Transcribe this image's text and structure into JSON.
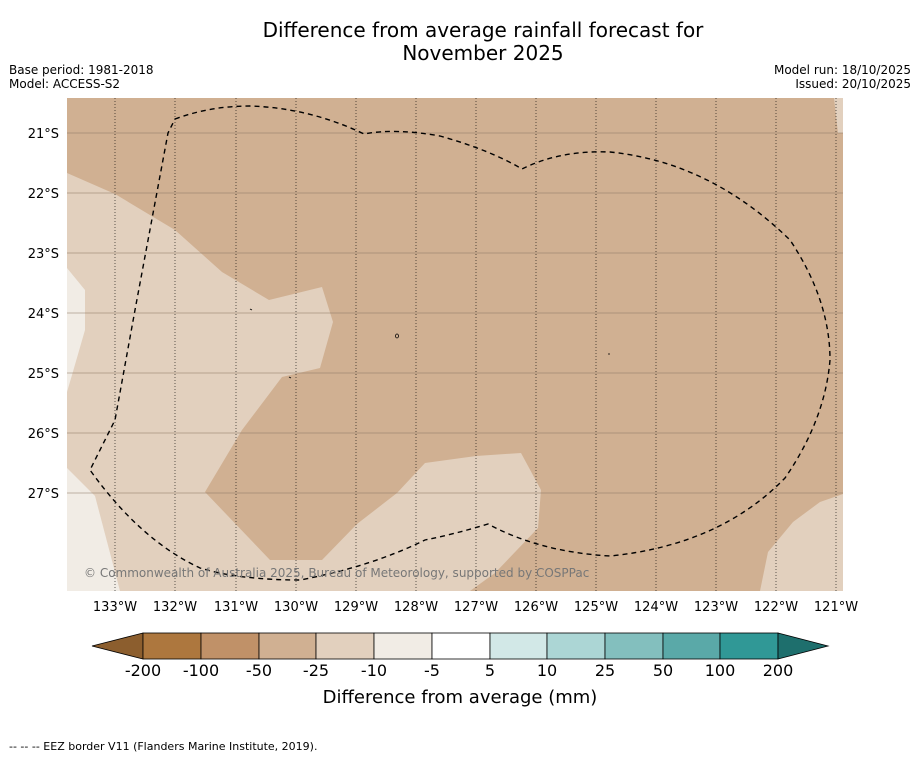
{
  "title": {
    "line1": "Difference from average rainfall forecast for",
    "line2": "November 2025"
  },
  "meta": {
    "base_period": "Base period: 1981-2018",
    "model": "Model: ACCESS-S2",
    "model_run": "Model run: 18/10/2025",
    "issued": "Issued: 20/10/2025"
  },
  "map": {
    "lat_labels": [
      "21°S",
      "22°S",
      "23°S",
      "24°S",
      "25°S",
      "26°S",
      "27°S"
    ],
    "lon_labels": [
      "133°W",
      "132°W",
      "131°W",
      "130°W",
      "129°W",
      "128°W",
      "127°W",
      "126°W",
      "125°W",
      "124°W",
      "123°W",
      "122°W",
      "121°W"
    ],
    "copyright": "© Commonwealth of Australia 2025, Bureau of Meteorology, supported by COSPPac",
    "colors": {
      "below_minus_200": "#8c5e2e",
      "minus_200_to_100": "#ad773e",
      "minus_100_to_50": "#c09168",
      "minus_50_to_25": "#d0b092",
      "minus_25_to_10": "#e2d0be",
      "minus_10_to_5": "#f1ece5",
      "near_zero": "#ffffff",
      "plus_5_to_10": "#d2e8e7",
      "plus_10_to_25": "#acd6d5",
      "plus_25_to_50": "#83bfbe",
      "plus_50_to_100": "#5aa9a8",
      "plus_100_to_200": "#309896",
      "above_200": "#1e6f6d"
    }
  },
  "colorbar": {
    "ticks": [
      "-200",
      "-100",
      "-50",
      "-25",
      "-10",
      "-5",
      "5",
      "10",
      "25",
      "50",
      "100",
      "200"
    ],
    "label": "Difference from average (mm)"
  },
  "footnote": "--  --  -- EEZ border V11 (Flanders Marine Institute, 2019)."
}
